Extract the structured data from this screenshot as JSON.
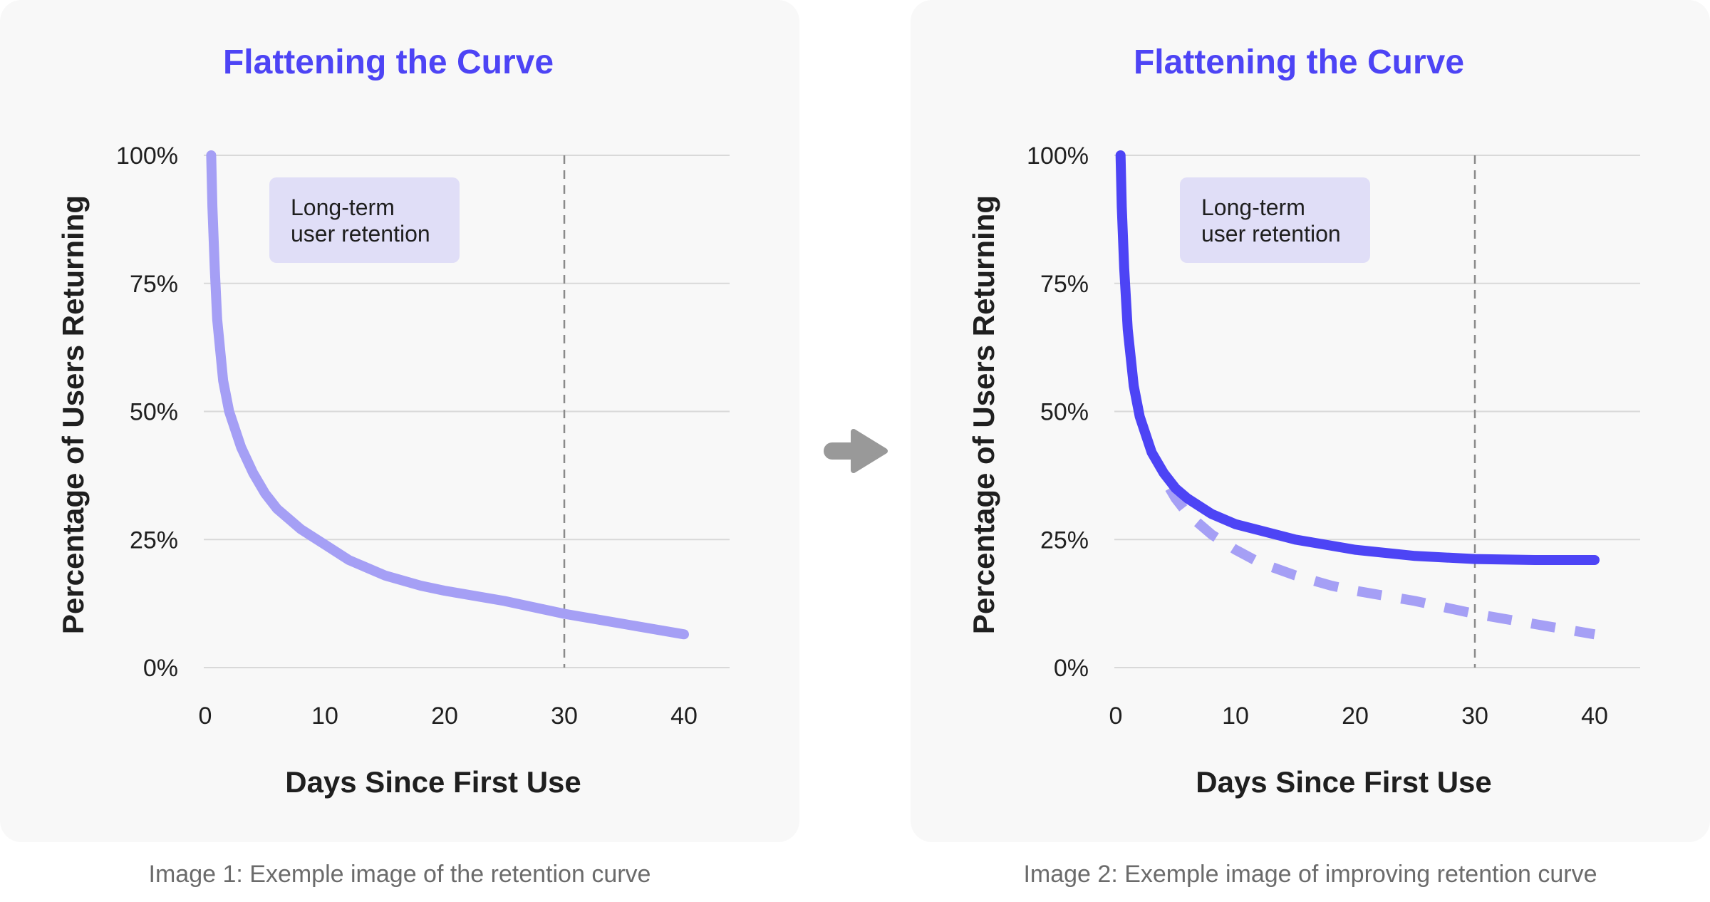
{
  "colors": {
    "accent": "#4d44f5",
    "faded": "#a59ff5",
    "annotation_bg": "#e0def7",
    "grid": "#d9d9d9",
    "marker": "#8a8a8a",
    "arrow": "#999999",
    "text": "#1f1f1f"
  },
  "icons": {
    "mid_arrow": "right-arrow-icon"
  },
  "chart_data": [
    {
      "type": "line",
      "title": "Flattening the Curve",
      "xlabel": "Days Since First Use",
      "ylabel": "Percentage of Users Returning",
      "xlim": [
        0,
        44
      ],
      "ylim": [
        0,
        100
      ],
      "xticks": [
        0,
        10,
        20,
        30,
        40
      ],
      "yticks": [
        0,
        25,
        50,
        75,
        100
      ],
      "ytick_labels": [
        "0%",
        "25%",
        "50%",
        "75%",
        "100%"
      ],
      "grid": "horizontal",
      "marker_x": 30,
      "annotation": {
        "line1": "Long-term",
        "line2": "user retention"
      },
      "series": [
        {
          "style": "solid",
          "color": "faded",
          "x": [
            0.5,
            0.6,
            0.8,
            1,
            1.5,
            2,
            3,
            4,
            5,
            6,
            8,
            10,
            12,
            15,
            18,
            20,
            25,
            30,
            35,
            40
          ],
          "y": [
            100,
            90,
            78,
            68,
            56,
            50,
            43,
            38,
            34,
            31,
            27,
            24,
            21,
            18,
            16,
            15,
            13,
            10.5,
            8.5,
            6.5
          ]
        }
      ]
    },
    {
      "type": "line",
      "title": "Flattening the Curve",
      "xlabel": "Days Since First Use",
      "ylabel": "Percentage of Users Returning",
      "xlim": [
        0,
        44
      ],
      "ylim": [
        0,
        100
      ],
      "xticks": [
        0,
        10,
        20,
        30,
        40
      ],
      "yticks": [
        0,
        25,
        50,
        75,
        100
      ],
      "ytick_labels": [
        "0%",
        "25%",
        "50%",
        "75%",
        "100%"
      ],
      "grid": "horizontal",
      "marker_x": 30,
      "annotation": {
        "line1": "Long-term",
        "line2": "user retention"
      },
      "series": [
        {
          "style": "dashed",
          "color": "faded",
          "x": [
            4.5,
            5,
            6,
            8,
            10,
            12,
            15,
            18,
            20,
            25,
            30,
            35,
            40
          ],
          "y": [
            35,
            33,
            30,
            26,
            23,
            20.5,
            18,
            16,
            15,
            13,
            10.5,
            8.5,
            6.5
          ]
        },
        {
          "style": "solid",
          "color": "accent",
          "x": [
            0.4,
            0.5,
            0.7,
            1,
            1.5,
            2,
            3,
            4,
            5,
            6,
            8,
            10,
            12,
            15,
            18,
            20,
            25,
            30,
            35,
            40
          ],
          "y": [
            100,
            90,
            78,
            66,
            55,
            49,
            42,
            38,
            35,
            33,
            30,
            28,
            26.8,
            25,
            23.8,
            23,
            21.8,
            21.2,
            21,
            21
          ]
        }
      ]
    }
  ],
  "captions": [
    "Image 1: Exemple image of the retention curve",
    "Image 2: Exemple image of improving retention curve"
  ]
}
